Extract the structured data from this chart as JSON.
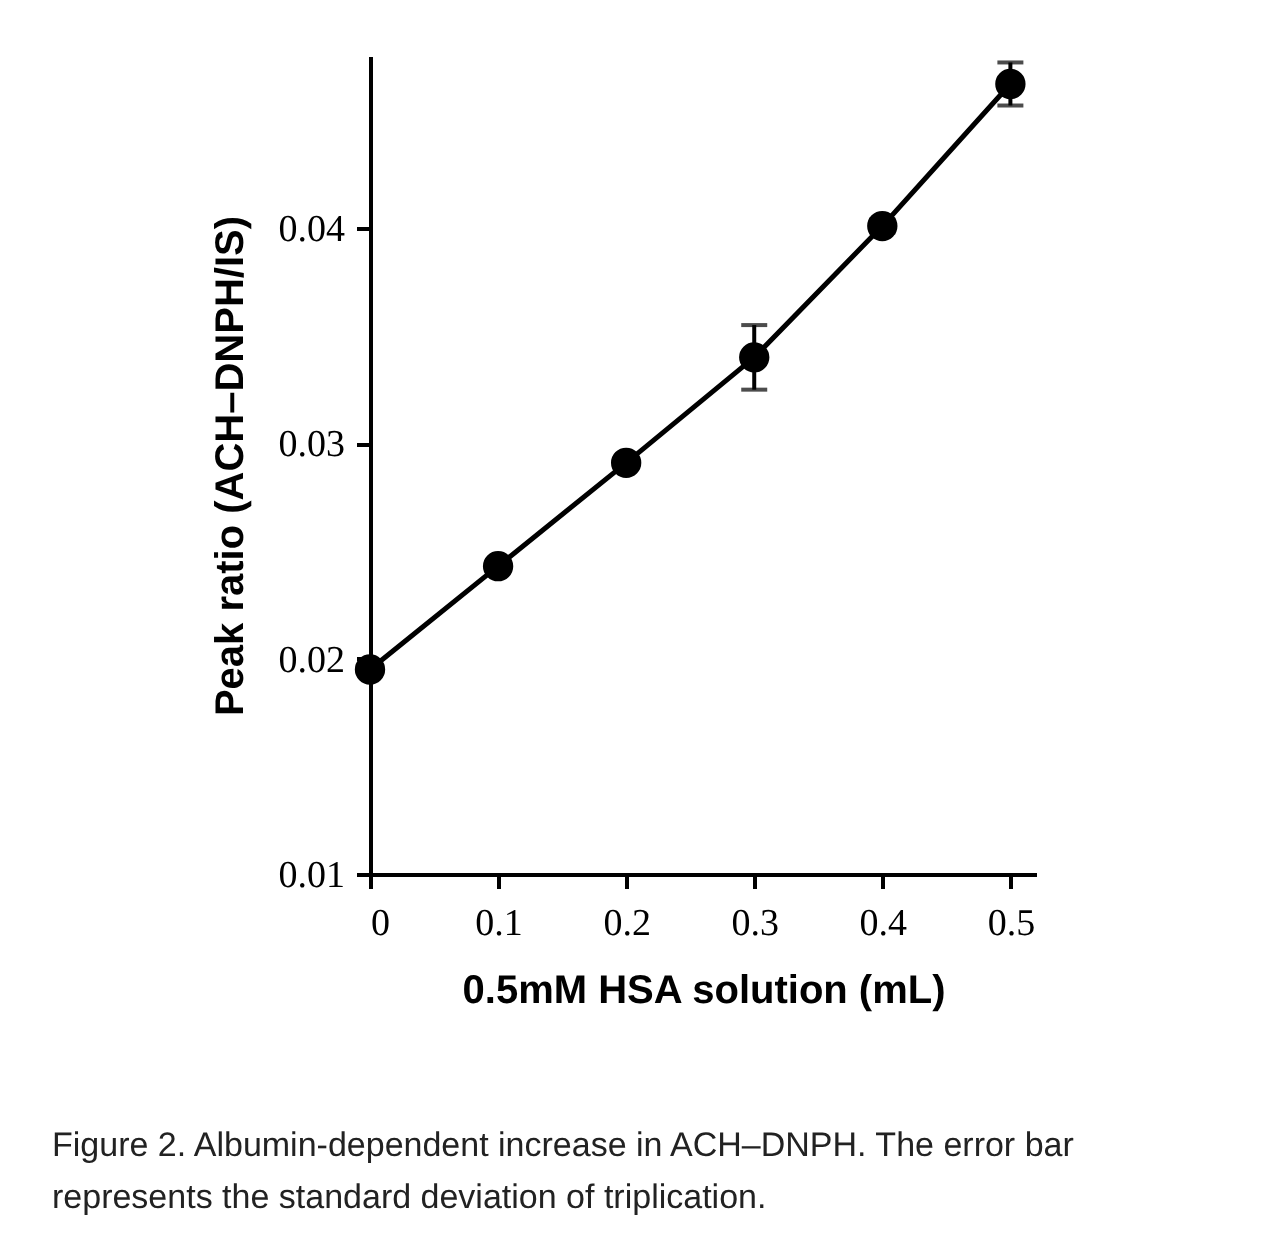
{
  "chart_data": {
    "type": "line",
    "xlabel": "0.5mM HSA solution (mL)",
    "ylabel": "Peak ratio (ACH–DNPH/IS)",
    "x": [
      0,
      0.1,
      0.2,
      0.3,
      0.4,
      0.5
    ],
    "series": [
      {
        "color": "#000000",
        "values": [
          0.0195,
          0.0243,
          0.0291,
          0.034,
          0.0401,
          0.0467
        ],
        "errors": [
          null,
          null,
          null,
          0.0015,
          0.0003,
          0.001
        ]
      }
    ],
    "xlim": [
      0,
      0.52
    ],
    "xticks": [
      0,
      0.1,
      0.2,
      0.3,
      0.4,
      0.5
    ],
    "ylim": [
      0.01,
      0.048
    ],
    "yticks": [
      0.01,
      0.02,
      0.03,
      0.04
    ],
    "grid": false,
    "marker": "circle",
    "line_style": "solid",
    "annotations": [
      "Figure 2. Albumin-dependent increase in ACH–DNPH. The error bar represents the standard deviation of triplication."
    ]
  }
}
